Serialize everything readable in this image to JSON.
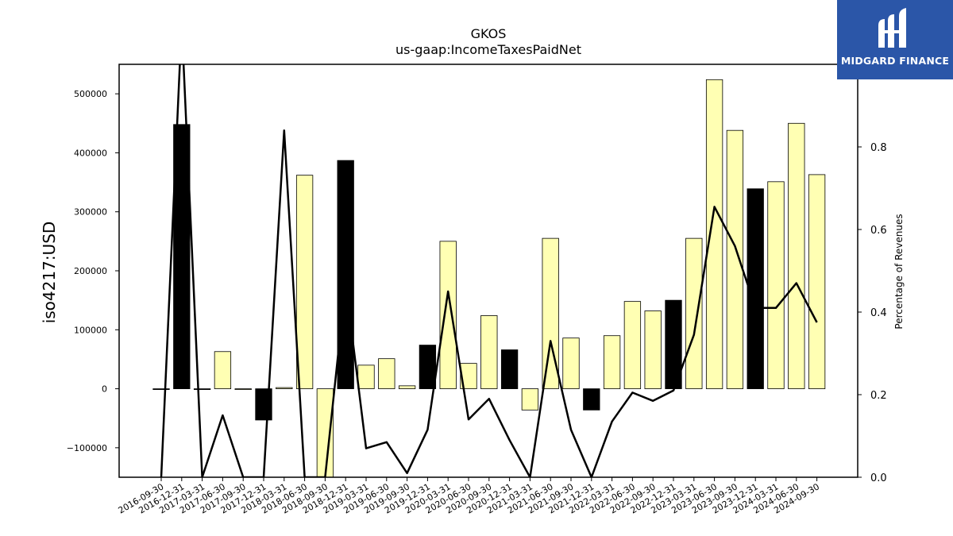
{
  "colors": {
    "positive_bar": "#ffffb3",
    "quarter_end_bar": "#000000",
    "line": "#000000",
    "logo_bg": "#2b56a8"
  },
  "logo": {
    "name": "MIDGARD FINANCE",
    "icon": "midgard-m-logo-icon"
  },
  "chart_data": {
    "type": "bar",
    "title": "GKOS",
    "subtitle": "us-gaap:IncomeTaxesPaidNet",
    "ylabel": "iso4217:USD",
    "y2label": "Percentage of Revenues",
    "ylim": [
      -150000,
      550000
    ],
    "y2lim": [
      0.0,
      1.0
    ],
    "yticks": [
      -100000,
      0,
      100000,
      200000,
      300000,
      400000,
      500000
    ],
    "yticklabels": [
      "−100000",
      "0",
      "100000",
      "200000",
      "300000",
      "400000",
      "500000"
    ],
    "y2ticks": [
      0.0,
      0.2,
      0.4,
      0.6,
      0.8
    ],
    "y2ticklabels": [
      "0.0",
      "0.2",
      "0.4",
      "0.6",
      "0.8"
    ],
    "categories": [
      "2016-09-30",
      "2016-12-31",
      "2017-03-31",
      "2017-06-30",
      "2017-09-30",
      "2017-12-31",
      "2018-03-31",
      "2018-06-30",
      "2018-09-30",
      "2018-12-31",
      "2019-03-31",
      "2019-06-30",
      "2019-09-30",
      "2019-12-31",
      "2020-03-31",
      "2020-06-30",
      "2020-09-30",
      "2020-12-31",
      "2021-03-31",
      "2021-06-30",
      "2021-09-30",
      "2021-12-31",
      "2022-03-31",
      "2022-06-30",
      "2022-09-30",
      "2022-12-31",
      "2023-03-31",
      "2023-06-30",
      "2023-09-30",
      "2023-12-31",
      "2024-03-31",
      "2024-06-30",
      "2024-09-30"
    ],
    "series": [
      {
        "values": [
          0,
          448000,
          0,
          63000,
          0,
          -53000,
          2000,
          362000,
          -155000,
          387000,
          40000,
          51000,
          5000,
          74000,
          250000,
          43000,
          124000,
          66000,
          -36000,
          255000,
          86000,
          -36000,
          90000,
          148000,
          132000,
          150000,
          255000,
          524000,
          438000,
          339000,
          351000,
          450000,
          363000
        ],
        "bar_colors": [
          "black",
          "black",
          "black",
          "yellow",
          "yellow",
          "black",
          "yellow",
          "yellow",
          "yellow",
          "black",
          "yellow",
          "yellow",
          "yellow",
          "black",
          "yellow",
          "yellow",
          "yellow",
          "black",
          "yellow",
          "yellow",
          "yellow",
          "black",
          "yellow",
          "yellow",
          "yellow",
          "black",
          "yellow",
          "yellow",
          "yellow",
          "black",
          "yellow",
          "yellow",
          "yellow"
        ]
      },
      {
        "axis": "right",
        "values": [
          0.0,
          1.1,
          0.0,
          0.15,
          0.0,
          0.0,
          0.84,
          0.0,
          0.0,
          0.47,
          0.07,
          0.085,
          0.01,
          0.115,
          0.45,
          0.14,
          0.19,
          0.09,
          0.0,
          0.33,
          0.115,
          0.0,
          0.135,
          0.205,
          0.185,
          0.21,
          0.345,
          0.655,
          0.56,
          0.41,
          0.41,
          0.47,
          0.375
        ]
      }
    ],
    "grid": false
  }
}
